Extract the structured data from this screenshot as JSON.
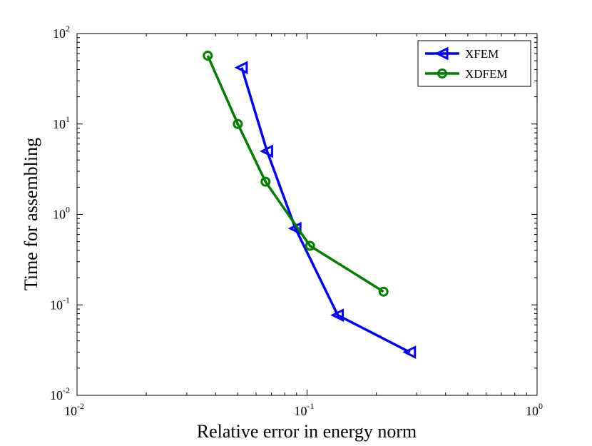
{
  "chart_data": {
    "type": "line",
    "xscale": "log",
    "yscale": "log",
    "xlim": [
      0.01,
      1
    ],
    "ylim": [
      0.01,
      100
    ],
    "xlabel": "Relative error in energy norm",
    "ylabel": "Time for assembling",
    "x_ticks": [
      {
        "base": "10",
        "exp": "-2",
        "value": 0.01
      },
      {
        "base": "10",
        "exp": "-1",
        "value": 0.1
      },
      {
        "base": "10",
        "exp": "0",
        "value": 1
      }
    ],
    "y_ticks": [
      {
        "base": "10",
        "exp": "-2",
        "value": 0.01
      },
      {
        "base": "10",
        "exp": "-1",
        "value": 0.1
      },
      {
        "base": "10",
        "exp": "0",
        "value": 1
      },
      {
        "base": "10",
        "exp": "1",
        "value": 10
      },
      {
        "base": "10",
        "exp": "2",
        "value": 100
      }
    ],
    "legend_position": "top-right",
    "series": [
      {
        "name": "XFEM",
        "color": "#0000ff",
        "marker": "triangle-left",
        "x": [
          0.052,
          0.067,
          0.089,
          0.136,
          0.28
        ],
        "y": [
          42,
          5.0,
          0.7,
          0.077,
          0.03
        ]
      },
      {
        "name": "XDFEM",
        "color": "#007f00",
        "marker": "circle",
        "x": [
          0.037,
          0.05,
          0.066,
          0.103,
          0.215
        ],
        "y": [
          57,
          10,
          2.3,
          0.45,
          0.14
        ]
      }
    ]
  }
}
